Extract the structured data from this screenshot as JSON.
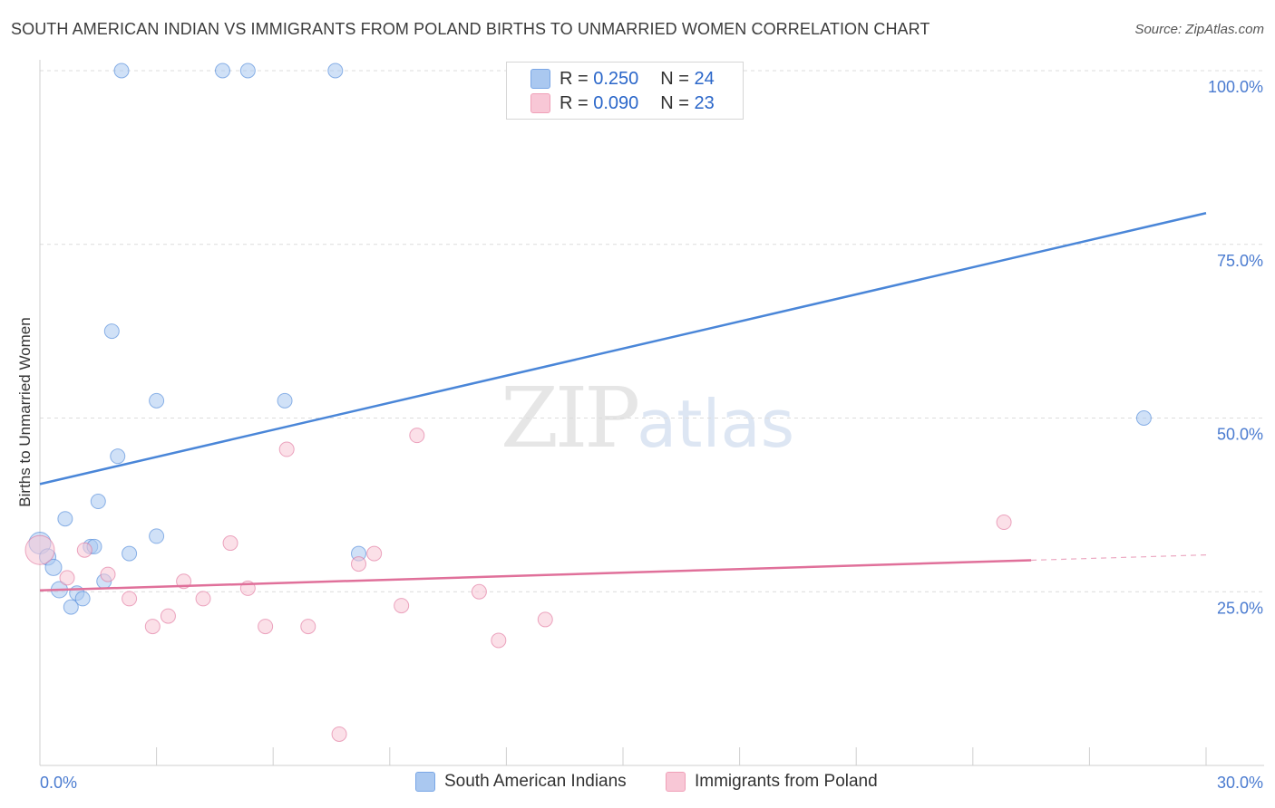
{
  "header": {
    "title": "SOUTH AMERICAN INDIAN VS IMMIGRANTS FROM POLAND BIRTHS TO UNMARRIED WOMEN CORRELATION CHART",
    "source": "Source: ZipAtlas.com"
  },
  "watermark": {
    "zip": "ZIP",
    "atlas": "atlas"
  },
  "legend": {
    "r_label": "R =",
    "n_label": "N =",
    "items": [
      {
        "r": "0.250",
        "n": "24",
        "color": "#aac8f0",
        "border": "#7aa7e6"
      },
      {
        "r": "0.090",
        "n": "23",
        "color": "#f8c7d6",
        "border": "#f0a0b8"
      }
    ]
  },
  "chart_data": {
    "type": "scatter",
    "title": "SOUTH AMERICAN INDIAN VS IMMIGRANTS FROM POLAND BIRTHS TO UNMARRIED WOMEN CORRELATION CHART",
    "xlabel": "",
    "ylabel": "Births to Unmarried Women",
    "xlim": [
      0,
      30
    ],
    "ylim": [
      0,
      100
    ],
    "x_tick_labels": [
      "0.0%",
      "30.0%"
    ],
    "y_ticks": [
      25,
      50,
      75,
      100
    ],
    "y_tick_labels": [
      "25.0%",
      "50.0%",
      "75.0%",
      "100.0%"
    ],
    "series": [
      {
        "name": "South American Indians",
        "color": "#4a86d8",
        "fill": "#aac8f0",
        "trend": {
          "x0": 0,
          "y0": 40.5,
          "x1": 30,
          "y1": 79.5,
          "dashed_from": null
        },
        "points": [
          [
            0.0,
            32.0,
            12
          ],
          [
            0.2,
            30.0,
            9
          ],
          [
            0.35,
            28.5,
            9
          ],
          [
            0.5,
            25.3,
            9
          ],
          [
            0.65,
            35.5,
            8
          ],
          [
            0.8,
            22.8,
            8
          ],
          [
            0.95,
            24.8,
            8
          ],
          [
            1.1,
            24.0,
            8
          ],
          [
            1.3,
            31.5,
            8
          ],
          [
            1.4,
            31.5,
            8
          ],
          [
            1.5,
            38.0,
            8
          ],
          [
            1.65,
            26.5,
            8
          ],
          [
            1.85,
            62.5,
            8
          ],
          [
            2.0,
            44.5,
            8
          ],
          [
            2.1,
            100.0,
            8
          ],
          [
            2.3,
            30.5,
            8
          ],
          [
            3.0,
            33.0,
            8
          ],
          [
            3.0,
            52.5,
            8
          ],
          [
            4.7,
            100.0,
            8
          ],
          [
            5.35,
            100.0,
            8
          ],
          [
            6.3,
            52.5,
            8
          ],
          [
            7.6,
            100.0,
            8
          ],
          [
            8.2,
            30.5,
            8
          ],
          [
            28.4,
            50.0,
            8
          ]
        ]
      },
      {
        "name": "Immigrants from Poland",
        "color": "#e0709a",
        "fill": "#f8c7d6",
        "trend": {
          "x0": 0,
          "y0": 25.2,
          "x1": 30,
          "y1": 30.3,
          "dashed_from": 25.5
        },
        "points": [
          [
            0.0,
            31.0,
            16
          ],
          [
            0.7,
            27.0,
            8
          ],
          [
            1.15,
            31.0,
            8
          ],
          [
            1.75,
            27.5,
            8
          ],
          [
            2.3,
            24.0,
            8
          ],
          [
            2.9,
            20.0,
            8
          ],
          [
            3.3,
            21.5,
            8
          ],
          [
            3.7,
            26.5,
            8
          ],
          [
            4.2,
            24.0,
            8
          ],
          [
            4.9,
            32.0,
            8
          ],
          [
            5.35,
            25.5,
            8
          ],
          [
            5.8,
            20.0,
            8
          ],
          [
            6.35,
            45.5,
            8
          ],
          [
            6.9,
            20.0,
            8
          ],
          [
            7.7,
            4.5,
            8
          ],
          [
            8.2,
            29.0,
            8
          ],
          [
            8.6,
            30.5,
            8
          ],
          [
            9.3,
            23.0,
            8
          ],
          [
            9.7,
            47.5,
            8
          ],
          [
            11.3,
            25.0,
            8
          ],
          [
            11.8,
            18.0,
            8
          ],
          [
            13.0,
            21.0,
            8
          ],
          [
            24.8,
            35.0,
            8
          ]
        ]
      }
    ]
  }
}
